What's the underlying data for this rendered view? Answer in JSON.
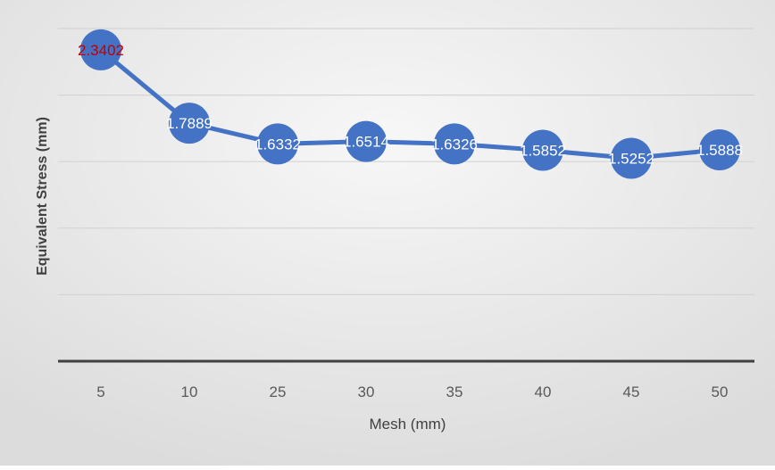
{
  "chart_data": {
    "type": "line",
    "title": "",
    "xlabel": "Mesh (mm)",
    "ylabel": "Equivalent Stress (mm)",
    "categories": [
      "5",
      "10",
      "25",
      "30",
      "35",
      "40",
      "45",
      "50"
    ],
    "series": [
      {
        "values": [
          2.3402,
          1.7889,
          1.6332,
          1.6514,
          1.6326,
          1.5852,
          1.5252,
          1.5888
        ],
        "data_labels": [
          "2.3402",
          "1.7889",
          "1.6332",
          "1.6514",
          "1.6326",
          "1.5852",
          "1.5252",
          "1.5888"
        ]
      }
    ],
    "ylim": [
      0,
      2.5
    ],
    "y_gridlines": [
      0.5,
      1.0,
      1.5,
      2.0,
      2.5
    ],
    "grid": true,
    "legend": "none",
    "colors": {
      "line": "#4472C4",
      "marker": "#4472C4",
      "label_text": "#ffffff",
      "first_label_text": "#C00000",
      "gridline": "#d4d4d4",
      "axis_line": "#404040",
      "tick_text": "#595959",
      "axis_title_text": "#404040"
    }
  }
}
